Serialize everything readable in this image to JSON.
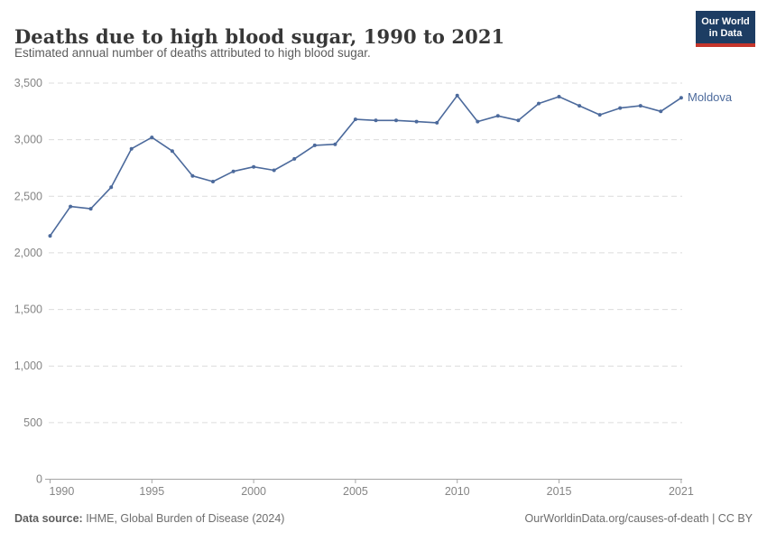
{
  "header": {
    "title": "Deaths due to high blood sugar, 1990 to 2021",
    "subtitle": "Estimated annual number of deaths attributed to high blood sugar.",
    "logo_line1": "Our World",
    "logo_line2": "in Data"
  },
  "chart_data": {
    "type": "line",
    "title": "Deaths due to high blood sugar, 1990 to 2021",
    "xlabel": "",
    "ylabel": "",
    "xlim": [
      1990,
      2021
    ],
    "ylim": [
      0,
      3500
    ],
    "x_ticks": [
      1990,
      1995,
      2000,
      2005,
      2010,
      2015,
      2021
    ],
    "y_ticks": [
      0,
      500,
      1000,
      1500,
      2000,
      2500,
      3000,
      3500
    ],
    "grid": "horizontal-dashed",
    "legend_position": "end-of-line-label",
    "x": [
      1990,
      1991,
      1992,
      1993,
      1994,
      1995,
      1996,
      1997,
      1998,
      1999,
      2000,
      2001,
      2002,
      2003,
      2004,
      2005,
      2006,
      2007,
      2008,
      2009,
      2010,
      2011,
      2012,
      2013,
      2014,
      2015,
      2016,
      2017,
      2018,
      2019,
      2020,
      2021
    ],
    "series": [
      {
        "name": "Moldova",
        "color": "#4C6A9C",
        "values": [
          2150,
          2410,
          2390,
          2580,
          2920,
          3020,
          2900,
          2680,
          2630,
          2720,
          2760,
          2730,
          2830,
          2950,
          2960,
          3180,
          3170,
          3170,
          3160,
          3150,
          3390,
          3160,
          3210,
          3170,
          3320,
          3380,
          3300,
          3220,
          3280,
          3300,
          3250,
          3370
        ]
      }
    ]
  },
  "footer": {
    "datasource_label": "Data source:",
    "datasource": " IHME, Global Burden of Disease (2024)",
    "url": "OurWorldinData.org/causes-of-death",
    "license": " | CC BY"
  },
  "colors": {
    "line": "#4C6A9C",
    "gridline": "#dcdcdc",
    "axis": "#a5a5a5",
    "tick_label": "#858585",
    "title": "#373737",
    "subtitle": "#5b5b5b",
    "logo_bg": "#1d3d63",
    "logo_stripe": "#c5352b"
  }
}
